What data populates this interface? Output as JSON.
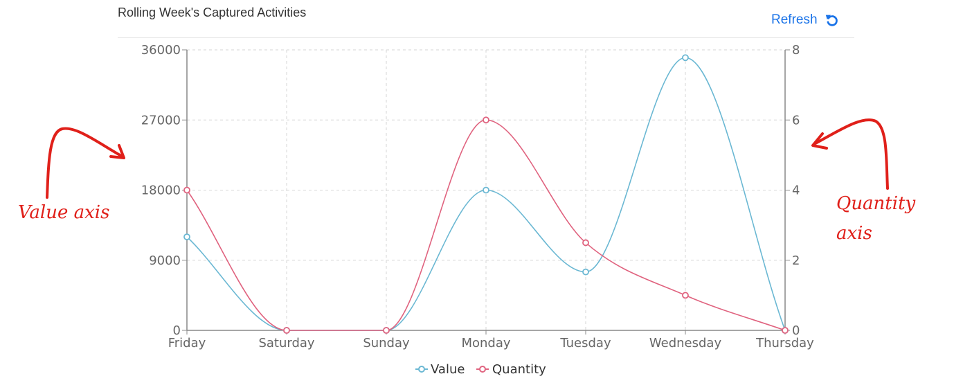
{
  "header": {
    "title": "Rolling Week's Captured Activities",
    "refresh_label": "Refresh",
    "refresh_icon": "refresh-icon"
  },
  "colors": {
    "value": "#6bb8d3",
    "quantity": "#e0637f",
    "grid": "#d6d6d6",
    "axis": "#888888",
    "annotation": "#e0201a",
    "accent": "#1a73e8"
  },
  "annotations": {
    "left": "Value axis",
    "right_line1": "Quantity",
    "right_line2": "axis"
  },
  "chart_data": {
    "type": "line",
    "smooth": true,
    "categories": [
      "Friday",
      "Saturday",
      "Sunday",
      "Monday",
      "Tuesday",
      "Wednesday",
      "Thursday"
    ],
    "series": [
      {
        "name": "Value",
        "axis": "left",
        "values": [
          12000,
          0,
          0,
          18000,
          7500,
          35000,
          0
        ]
      },
      {
        "name": "Quantity",
        "axis": "right",
        "values": [
          4,
          0,
          0,
          6,
          2.5,
          1,
          0
        ]
      }
    ],
    "y_left": {
      "min": 0,
      "max": 36000,
      "ticks": [
        0,
        9000,
        18000,
        27000,
        36000
      ]
    },
    "y_right": {
      "min": 0,
      "max": 8,
      "ticks": [
        0,
        2,
        4,
        6,
        8
      ]
    },
    "grid": true,
    "legend": "bottom-center"
  }
}
